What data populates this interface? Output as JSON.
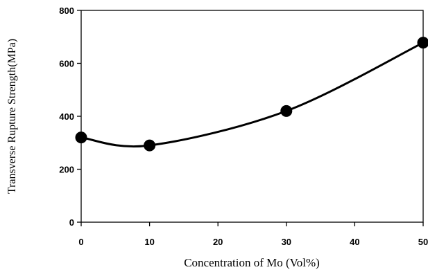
{
  "chart_data": {
    "type": "line",
    "title": "",
    "xlabel": "Concentration of Mo (Vol%)",
    "ylabel": "Transverse Rupture Strength(MPa)",
    "xlim": [
      0,
      50
    ],
    "ylim": [
      0,
      800
    ],
    "xticks": [
      "0",
      "10",
      "20",
      "30",
      "40",
      "50"
    ],
    "yticks": [
      "0",
      "200",
      "400",
      "600",
      "800"
    ],
    "grid": false,
    "legend": "none",
    "series": [
      {
        "x": [
          0,
          10,
          30,
          50
        ],
        "y": [
          320,
          290,
          420,
          678
        ],
        "marker": "circle",
        "color": "#000000",
        "smooth": true
      }
    ]
  }
}
